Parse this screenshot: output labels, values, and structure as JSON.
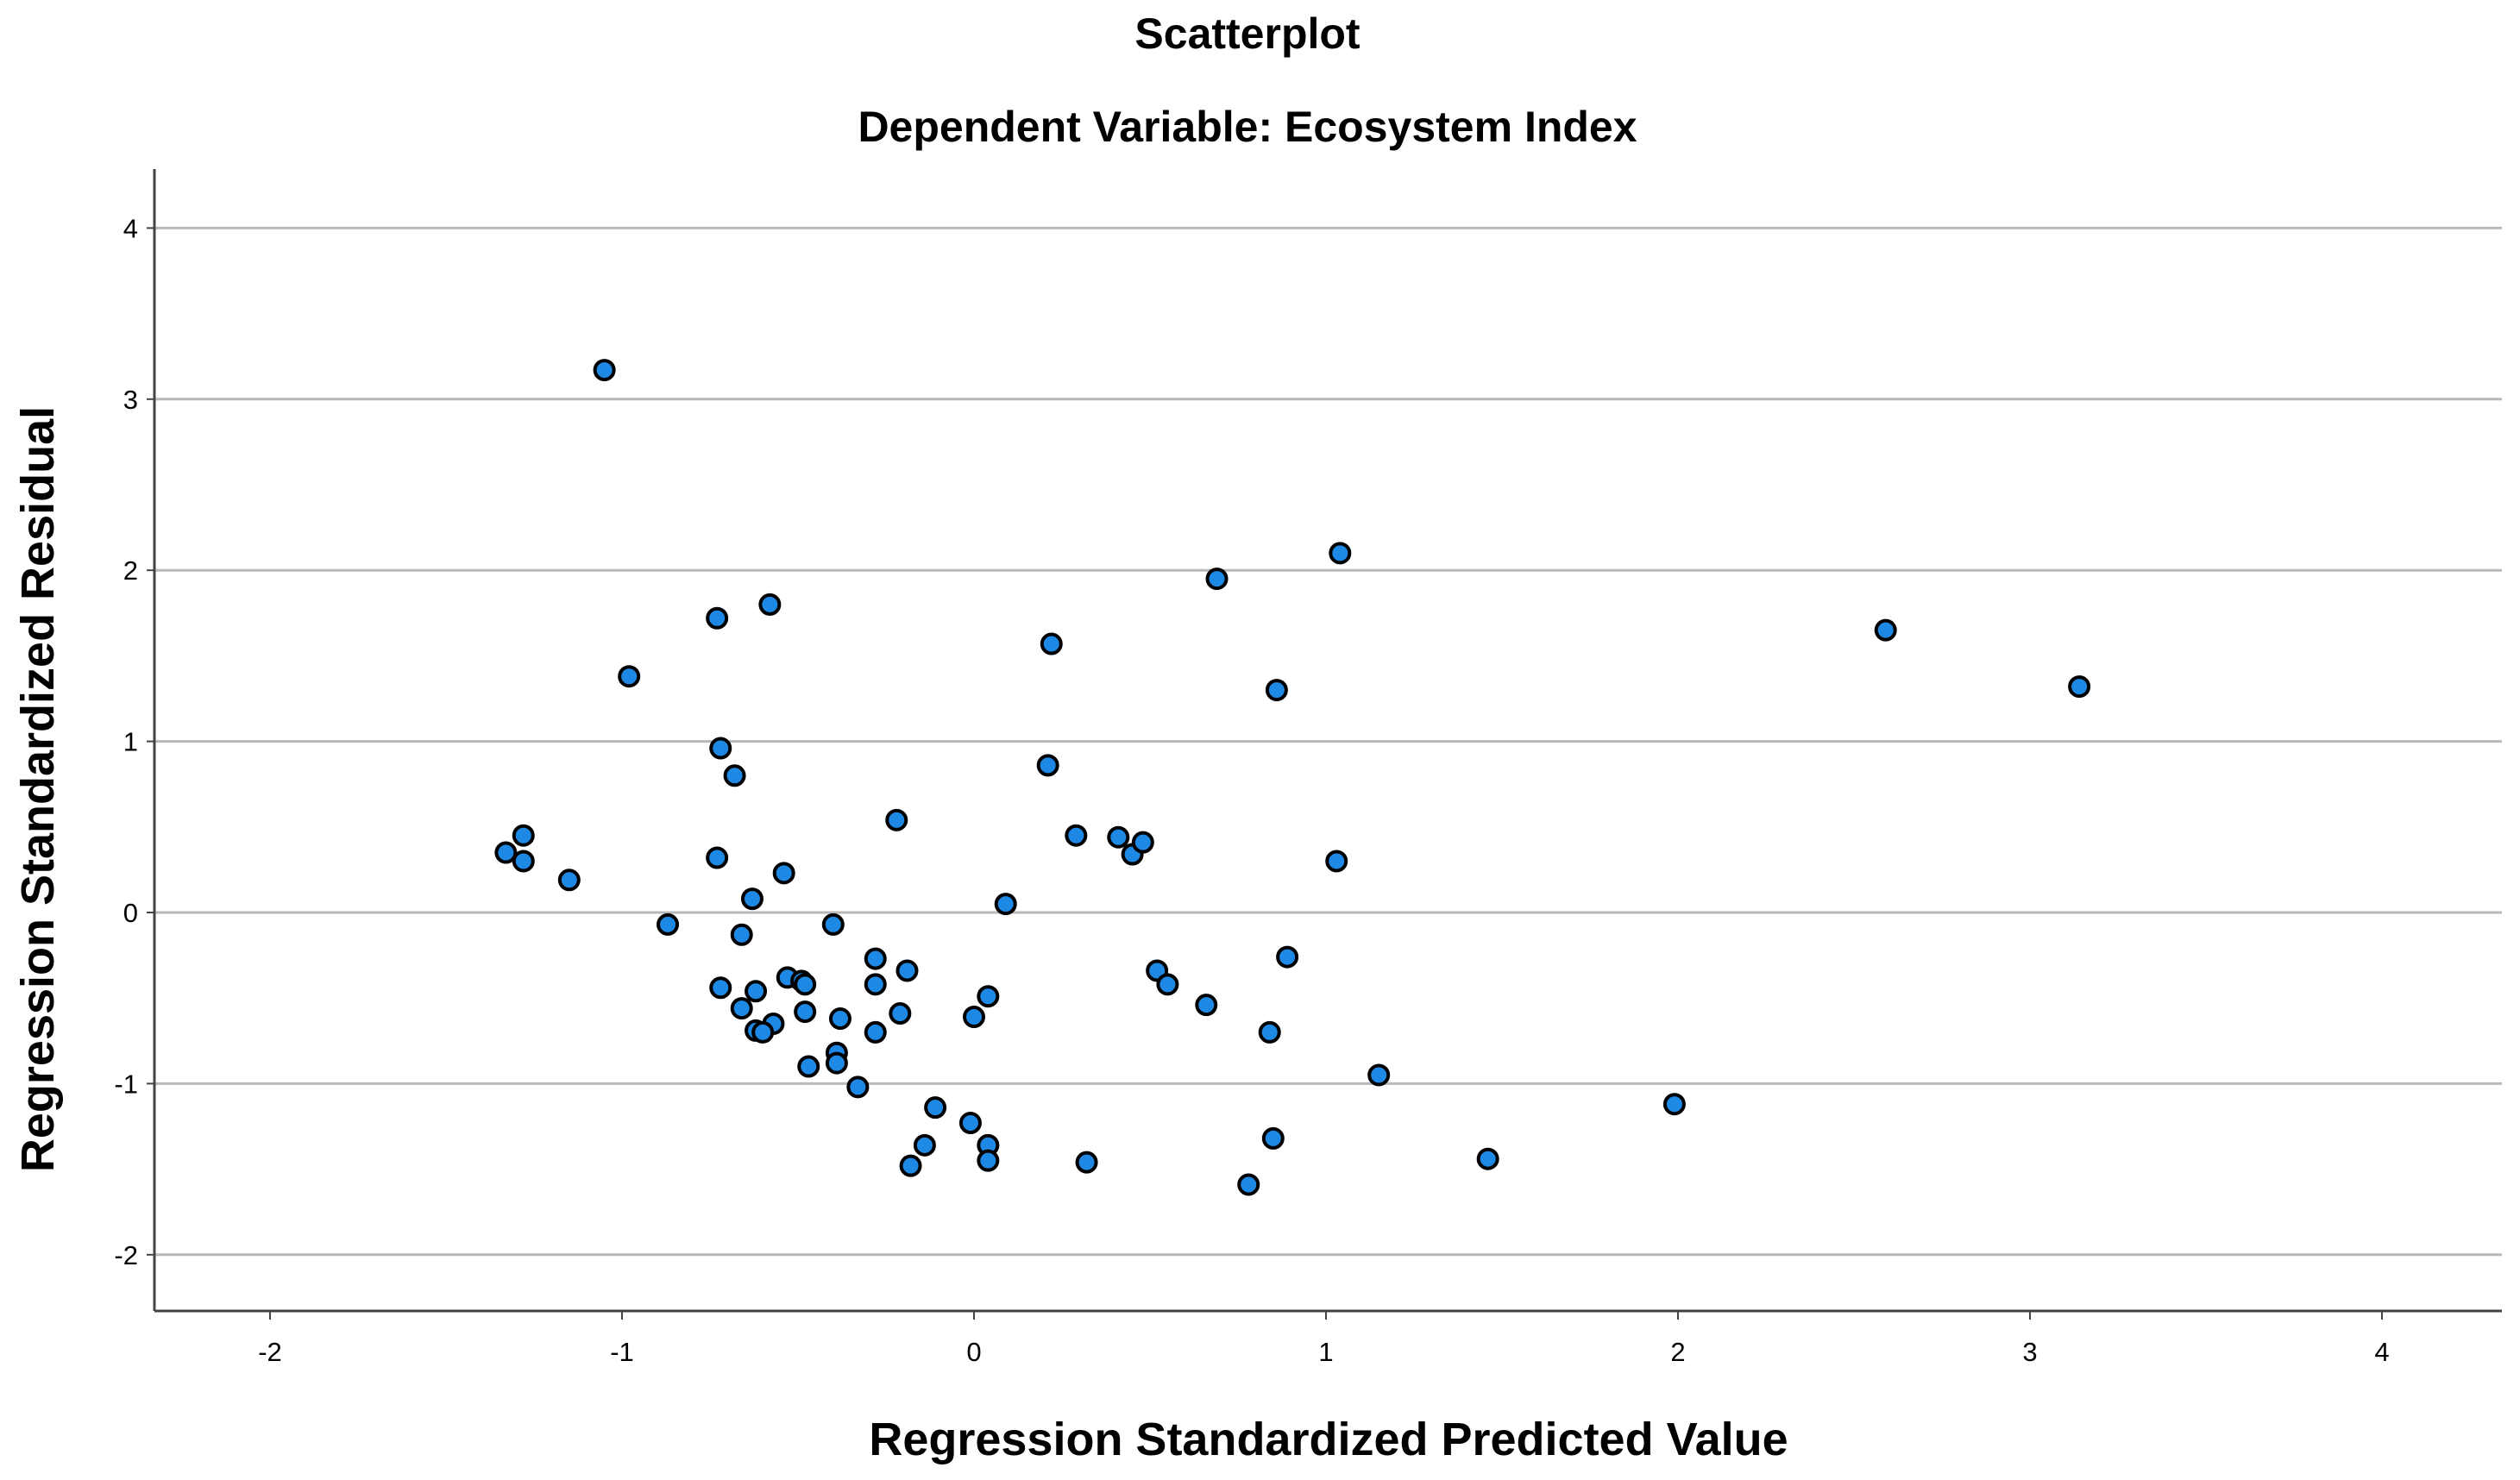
{
  "chart_data": {
    "type": "scatter",
    "title": "Scatterplot",
    "subtitle": "Dependent Variable: Ecosystem Index",
    "xlabel": "Regression Standardized Predicted Value",
    "ylabel": "Regression Standardized Residual",
    "xlim": [
      -2.35,
      4.3
    ],
    "ylim": [
      -2.3,
      4.35
    ],
    "xticks": [
      "-2",
      "-1",
      "0",
      "1",
      "2",
      "3",
      "4"
    ],
    "yticks": [
      "4",
      "3",
      "2",
      "1",
      "0",
      "-1",
      "-2"
    ],
    "grid": "horizontal",
    "legend": "none",
    "marker_color": "#1e88e5",
    "marker_edge": "#000000",
    "points": [
      [
        -1.05,
        3.17
      ],
      [
        -0.73,
        1.72
      ],
      [
        -0.58,
        1.8
      ],
      [
        -0.98,
        1.38
      ],
      [
        -0.72,
        0.96
      ],
      [
        -0.68,
        0.8
      ],
      [
        -1.33,
        0.35
      ],
      [
        -1.28,
        0.45
      ],
      [
        -1.28,
        0.3
      ],
      [
        -1.15,
        0.19
      ],
      [
        -0.73,
        0.32
      ],
      [
        -0.54,
        0.23
      ],
      [
        -0.63,
        0.08
      ],
      [
        -0.22,
        0.54
      ],
      [
        -0.87,
        -0.07
      ],
      [
        -0.66,
        -0.13
      ],
      [
        -0.4,
        -0.07
      ],
      [
        0.09,
        0.05
      ],
      [
        -0.72,
        -0.44
      ],
      [
        -0.62,
        -0.46
      ],
      [
        -0.66,
        -0.56
      ],
      [
        -0.53,
        -0.38
      ],
      [
        -0.49,
        -0.4
      ],
      [
        -0.48,
        -0.42
      ],
      [
        -0.48,
        -0.58
      ],
      [
        -0.57,
        -0.65
      ],
      [
        -0.62,
        -0.69
      ],
      [
        -0.6,
        -0.7
      ],
      [
        -0.38,
        -0.62
      ],
      [
        -0.28,
        -0.27
      ],
      [
        -0.28,
        -0.42
      ],
      [
        -0.19,
        -0.34
      ],
      [
        -0.21,
        -0.59
      ],
      [
        -0.28,
        -0.7
      ],
      [
        -0.39,
        -0.82
      ],
      [
        -0.39,
        -0.88
      ],
      [
        -0.47,
        -0.9
      ],
      [
        -0.33,
        -1.02
      ],
      [
        -0.11,
        -1.14
      ],
      [
        -0.01,
        -1.23
      ],
      [
        0.04,
        -0.49
      ],
      [
        0.0,
        -0.61
      ],
      [
        -0.14,
        -1.36
      ],
      [
        -0.18,
        -1.48
      ],
      [
        0.04,
        -1.36
      ],
      [
        0.04,
        -1.45
      ],
      [
        0.32,
        -1.46
      ],
      [
        0.21,
        0.86
      ],
      [
        0.22,
        1.57
      ],
      [
        0.29,
        0.45
      ],
      [
        0.41,
        0.44
      ],
      [
        0.45,
        0.34
      ],
      [
        0.48,
        0.41
      ],
      [
        0.69,
        1.95
      ],
      [
        1.04,
        2.1
      ],
      [
        0.86,
        1.3
      ],
      [
        1.03,
        0.3
      ],
      [
        0.52,
        -0.34
      ],
      [
        0.55,
        -0.42
      ],
      [
        0.66,
        -0.54
      ],
      [
        0.89,
        -0.26
      ],
      [
        0.84,
        -0.7
      ],
      [
        1.15,
        -0.95
      ],
      [
        0.85,
        -1.32
      ],
      [
        0.78,
        -1.59
      ],
      [
        1.46,
        -1.44
      ],
      [
        1.99,
        -1.12
      ],
      [
        2.59,
        1.65
      ],
      [
        3.14,
        1.32
      ]
    ]
  }
}
